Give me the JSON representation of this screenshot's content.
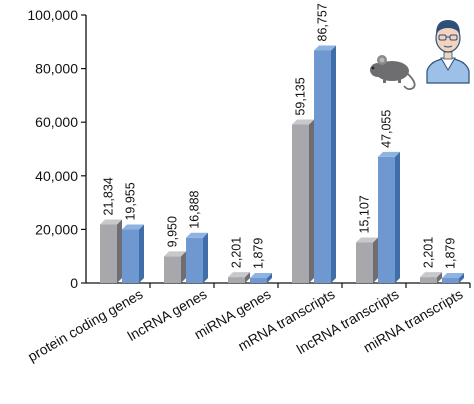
{
  "chart_data": {
    "type": "bar",
    "title": "",
    "xlabel": "",
    "ylabel": "",
    "ylim": [
      0,
      100000
    ],
    "yticks": [
      "0",
      "20,000",
      "40,000",
      "60,000",
      "80,000",
      "100,000"
    ],
    "ytick_values": [
      0,
      20000,
      40000,
      60000,
      80000,
      100000
    ],
    "categories": [
      "protein coding genes",
      "lncRNA genes",
      "miRNA genes",
      "mRNA transcripts",
      "lncRNA transcripts",
      "miRNA transcripts"
    ],
    "series": [
      {
        "color": "#a8a8ac",
        "values": [
          21834,
          9950,
          2201,
          59135,
          15107,
          2201
        ],
        "labels": [
          "21,834",
          "9,950",
          "2,201",
          "59,135",
          "15,107",
          "2,201"
        ]
      },
      {
        "color": "#6f98d0",
        "values": [
          19955,
          16888,
          1879,
          86757,
          47055,
          1879
        ],
        "labels": [
          "19,955",
          "16,888",
          "1,879",
          "86,757",
          "47,055",
          "1,879"
        ]
      }
    ],
    "style": "3d-bars",
    "grid": false,
    "legend": "icons top-right: mouse (grey series), human (blue series)"
  },
  "icons": {
    "mouse": "mouse-icon",
    "human": "human-doctor-icon"
  }
}
